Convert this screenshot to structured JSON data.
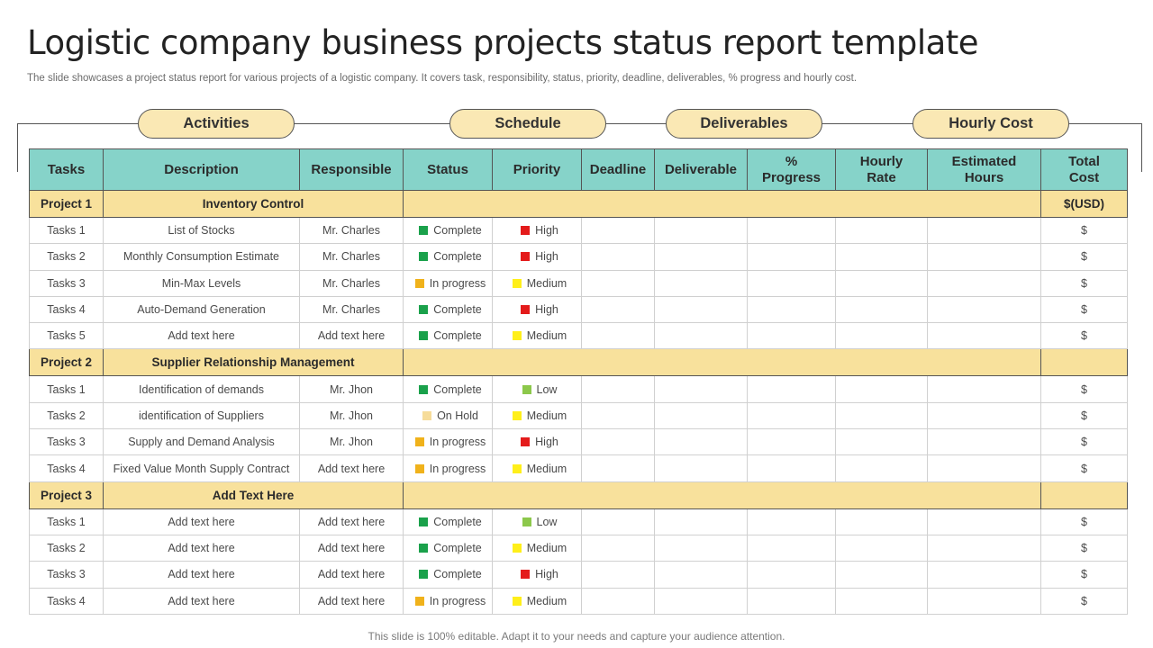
{
  "title": "Logistic company business projects status report template",
  "subtitle": "The slide showcases a project status report for various projects of a logistic company. It covers task, responsibility, status, priority, deadline, deliverables, % progress and hourly cost.",
  "categories": {
    "activities": "Activities",
    "schedule": "Schedule",
    "deliverables": "Deliverables",
    "hourly_cost": "Hourly Cost"
  },
  "headers": {
    "tasks": "Tasks",
    "description": "Description",
    "responsible": "Responsible",
    "status": "Status",
    "priority": "Priority",
    "deadline": "Deadline",
    "deliverable": "Deliverable",
    "progress_l1": "%",
    "progress_l2": "Progress",
    "hourly_l1": "Hourly",
    "hourly_l2": "Rate",
    "estimated_l1": "Estimated",
    "estimated_l2": "Hours",
    "total_l1": "Total",
    "total_l2": "Cost"
  },
  "colors": {
    "status": {
      "Complete": "#1aa14b",
      "In progress": "#f0b21b",
      "On Hold": "#f6dc9a"
    },
    "priority": {
      "High": "#e41b1b",
      "Medium": "#ffef1a",
      "Low": "#8cc84b"
    }
  },
  "projects": [
    {
      "label": "Project 1",
      "name": "Inventory Control",
      "total": "$(USD)",
      "tasks": [
        {
          "task": "Tasks 1",
          "description": "List of Stocks",
          "responsible": "Mr. Charles",
          "status": "Complete",
          "priority": "High",
          "cost": "$"
        },
        {
          "task": "Tasks 2",
          "description": "Monthly Consumption Estimate",
          "responsible": "Mr. Charles",
          "status": "Complete",
          "priority": "High",
          "cost": "$"
        },
        {
          "task": "Tasks 3",
          "description": "Min-Max Levels",
          "responsible": "Mr. Charles",
          "status": "In progress",
          "priority": "Medium",
          "cost": "$"
        },
        {
          "task": "Tasks 4",
          "description": "Auto-Demand Generation",
          "responsible": "Mr. Charles",
          "status": "Complete",
          "priority": "High",
          "cost": "$"
        },
        {
          "task": "Tasks 5",
          "description": "Add text here",
          "responsible": "Add text here",
          "status": "Complete",
          "priority": "Medium",
          "cost": "$"
        }
      ]
    },
    {
      "label": "Project 2",
      "name": "Supplier Relationship Management",
      "total": "",
      "tasks": [
        {
          "task": "Tasks 1",
          "description": "Identification of  demands",
          "responsible": "Mr. Jhon",
          "status": "Complete",
          "priority": "Low",
          "cost": "$"
        },
        {
          "task": "Tasks 2",
          "description": "identification of Suppliers",
          "responsible": "Mr. Jhon",
          "status": "On Hold",
          "priority": "Medium",
          "cost": "$"
        },
        {
          "task": "Tasks 3",
          "description": "Supply and Demand Analysis",
          "responsible": "Mr. Jhon",
          "status": "In progress",
          "priority": "High",
          "cost": "$"
        },
        {
          "task": "Tasks 4",
          "description": "Fixed Value Month Supply Contract",
          "responsible": "Add text here",
          "status": "In progress",
          "priority": "Medium",
          "cost": "$"
        }
      ]
    },
    {
      "label": "Project 3",
      "name": "Add Text Here",
      "total": "",
      "tasks": [
        {
          "task": "Tasks 1",
          "description": "Add text here",
          "responsible": "Add text here",
          "status": "Complete",
          "priority": "Low",
          "cost": "$"
        },
        {
          "task": "Tasks 2",
          "description": "Add text here",
          "responsible": "Add text here",
          "status": "Complete",
          "priority": "Medium",
          "cost": "$"
        },
        {
          "task": "Tasks 3",
          "description": "Add text here",
          "responsible": "Add text here",
          "status": "Complete",
          "priority": "High",
          "cost": "$"
        },
        {
          "task": "Tasks 4",
          "description": "Add text here",
          "responsible": "Add text here",
          "status": "In progress",
          "priority": "Medium",
          "cost": "$"
        }
      ]
    }
  ],
  "footer": "This slide is 100% editable. Adapt it to your needs and capture your audience attention."
}
